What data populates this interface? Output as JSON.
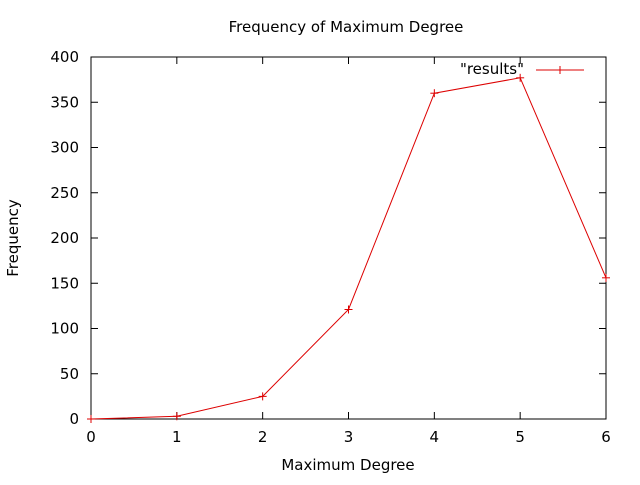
{
  "chart_data": {
    "type": "line",
    "title": "Frequency of Maximum Degree",
    "xlabel": "Maximum Degree",
    "ylabel": "Frequency",
    "xlim": [
      0,
      6
    ],
    "ylim": [
      0,
      400
    ],
    "x_ticks": [
      0,
      1,
      2,
      3,
      4,
      5,
      6
    ],
    "y_ticks": [
      0,
      50,
      100,
      150,
      200,
      250,
      300,
      350,
      400
    ],
    "grid": false,
    "legend_position": "top-right",
    "series": [
      {
        "name": "\"results\"",
        "color": "#dd0000",
        "marker": "plus",
        "x": [
          0,
          1,
          2,
          3,
          4,
          5,
          6
        ],
        "values": [
          0,
          3,
          25,
          121,
          360,
          377,
          156
        ]
      }
    ]
  }
}
